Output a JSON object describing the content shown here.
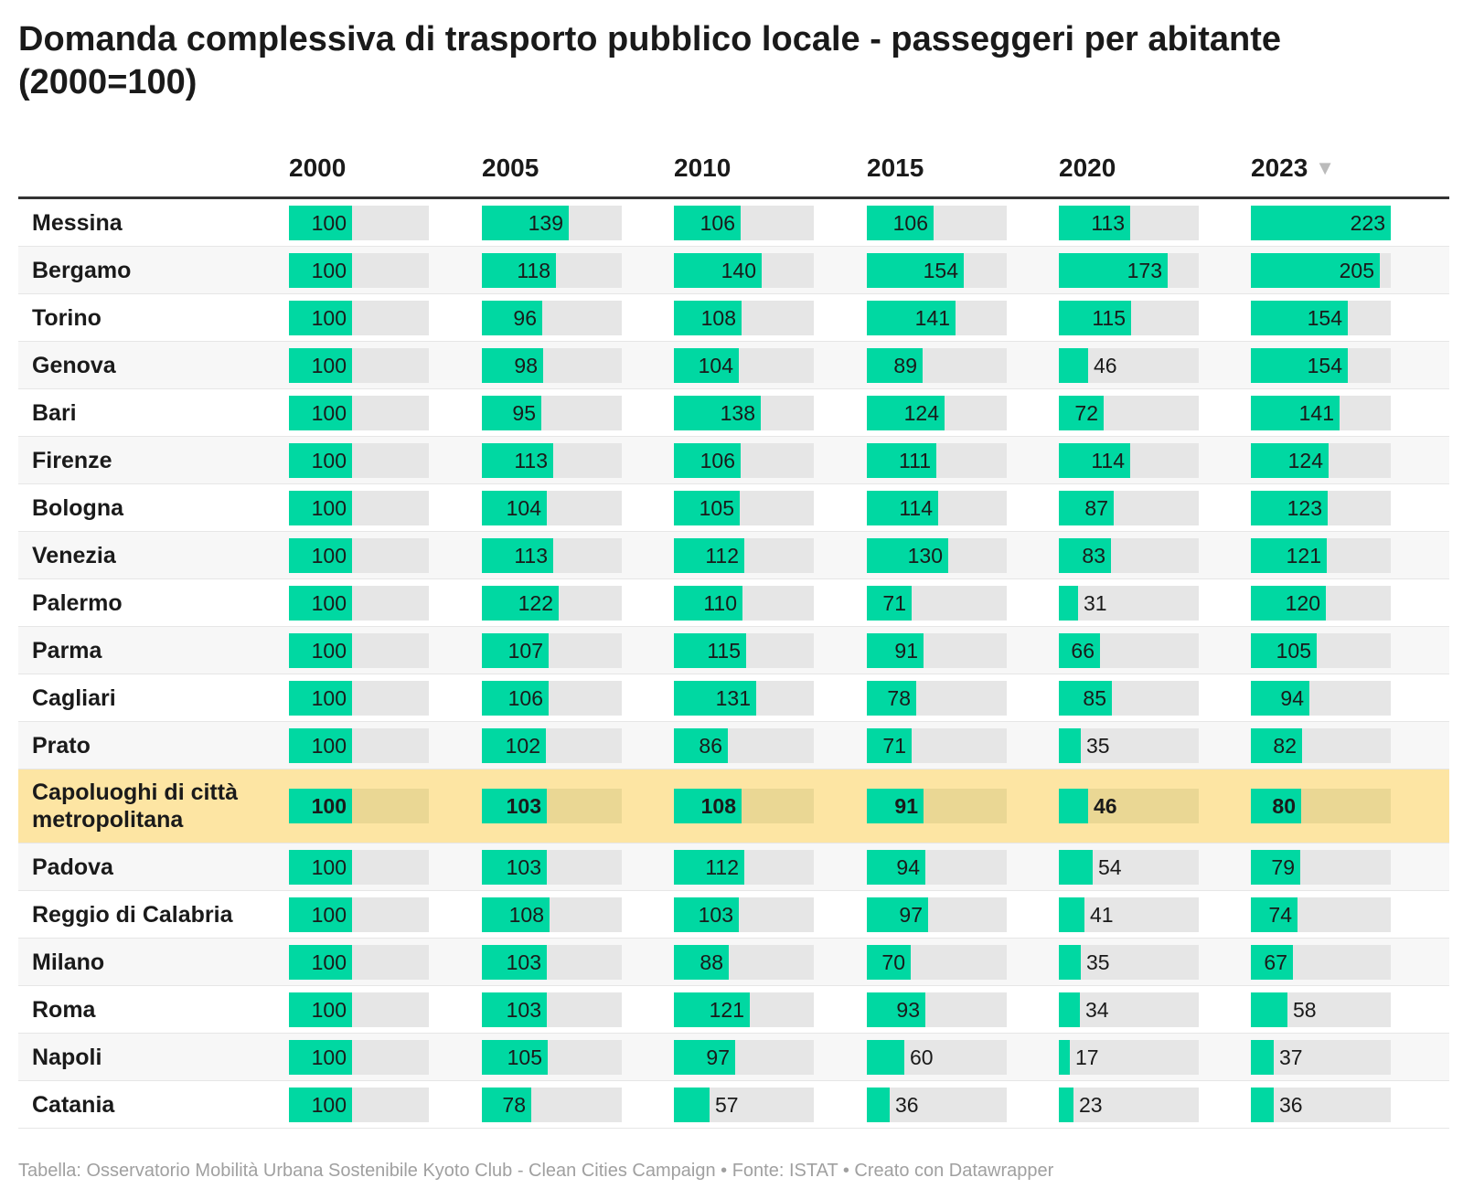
{
  "title": "Domanda complessiva di trasporto pubblico locale - passeggeri per abitante (2000=100)",
  "footer": "Tabella: Osservatorio Mobilità Urbana Sostenibile Kyoto Club - Clean Cities Campaign • Fonte: ISTAT • Creato con Datawrapper",
  "sort_icon": "▼",
  "colors": {
    "bar": "#00d8a2",
    "track": "#e6e6e6",
    "highlight_row": "#fde5a3"
  },
  "chart_data": {
    "type": "table",
    "columns": [
      "2000",
      "2005",
      "2010",
      "2015",
      "2020",
      "2023"
    ],
    "sorted_by": "2023",
    "sort_order": "descending",
    "scale_max": 223,
    "rows": [
      {
        "city": "Messina",
        "values": [
          100,
          139,
          106,
          106,
          113,
          223
        ]
      },
      {
        "city": "Bergamo",
        "values": [
          100,
          118,
          140,
          154,
          173,
          205
        ]
      },
      {
        "city": "Torino",
        "values": [
          100,
          96,
          108,
          141,
          115,
          154
        ]
      },
      {
        "city": "Genova",
        "values": [
          100,
          98,
          104,
          89,
          46,
          154
        ]
      },
      {
        "city": "Bari",
        "values": [
          100,
          95,
          138,
          124,
          72,
          141
        ]
      },
      {
        "city": "Firenze",
        "values": [
          100,
          113,
          106,
          111,
          114,
          124
        ]
      },
      {
        "city": "Bologna",
        "values": [
          100,
          104,
          105,
          114,
          87,
          123
        ]
      },
      {
        "city": "Venezia",
        "values": [
          100,
          113,
          112,
          130,
          83,
          121
        ]
      },
      {
        "city": "Palermo",
        "values": [
          100,
          122,
          110,
          71,
          31,
          120
        ]
      },
      {
        "city": "Parma",
        "values": [
          100,
          107,
          115,
          91,
          66,
          105
        ]
      },
      {
        "city": "Cagliari",
        "values": [
          100,
          106,
          131,
          78,
          85,
          94
        ]
      },
      {
        "city": "Prato",
        "values": [
          100,
          102,
          86,
          71,
          35,
          82
        ]
      },
      {
        "city": "Capoluoghi di città metropolitana",
        "values": [
          100,
          103,
          108,
          91,
          46,
          80
        ],
        "highlight": true
      },
      {
        "city": "Padova",
        "values": [
          100,
          103,
          112,
          94,
          54,
          79
        ]
      },
      {
        "city": "Reggio di Calabria",
        "values": [
          100,
          108,
          103,
          97,
          41,
          74
        ]
      },
      {
        "city": "Milano",
        "values": [
          100,
          103,
          88,
          70,
          35,
          67
        ]
      },
      {
        "city": "Roma",
        "values": [
          100,
          103,
          121,
          93,
          34,
          58
        ]
      },
      {
        "city": "Napoli",
        "values": [
          100,
          105,
          97,
          60,
          17,
          37
        ]
      },
      {
        "city": "Catania",
        "values": [
          100,
          78,
          57,
          36,
          23,
          36
        ]
      }
    ]
  }
}
